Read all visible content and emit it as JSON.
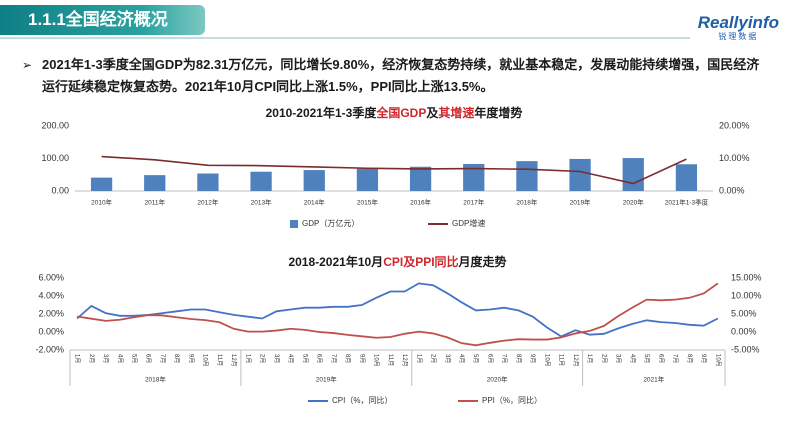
{
  "header": {
    "title": "1.1.1全国经济概况"
  },
  "logo": {
    "name": "Reallyinfo",
    "subtitle": "锐理数据"
  },
  "bullet": "2021年1-3季度全国GDP为82.31万亿元，同比增长9.80%，经济恢复态势持续，就业基本稳定，发展动能持续增强，国民经济运行延续稳定恢复态势。2021年10月CPI同比上涨1.5%，PPI同比上涨13.5%。",
  "chart_data": [
    {
      "type": "combo",
      "title_segments": [
        {
          "text": "2010-2021年1-3季度",
          "color": "#1a1a1a"
        },
        {
          "text": "全国GDP",
          "color": "#d0262a"
        },
        {
          "text": "及",
          "color": "#1a1a1a"
        },
        {
          "text": "其增速",
          "color": "#d0262a"
        },
        {
          "text": "年度增势",
          "color": "#1a1a1a"
        }
      ],
      "categories": [
        "2010年",
        "2011年",
        "2012年",
        "2013年",
        "2014年",
        "2015年",
        "2016年",
        "2017年",
        "2018年",
        "2019年",
        "2020年",
        "2021年1-3季度"
      ],
      "series": [
        {
          "name": "GDP（万亿元）",
          "type": "bar",
          "color": "#4f81bd",
          "values": [
            41.2,
            48.79,
            53.86,
            59.3,
            64.36,
            68.89,
            74.64,
            83.2,
            91.93,
            98.65,
            101.36,
            82.31
          ]
        },
        {
          "name": "GDP增速",
          "type": "line",
          "axis": "y2",
          "color": "#7b2c2c",
          "values": [
            10.6,
            9.6,
            7.9,
            7.8,
            7.4,
            7.0,
            6.8,
            6.9,
            6.7,
            6.0,
            2.3,
            9.8
          ]
        }
      ],
      "ylim": [
        0,
        200
      ],
      "yticks": [
        {
          "value": 0,
          "label": "0.00"
        },
        {
          "value": 100,
          "label": "100.00"
        },
        {
          "value": 200,
          "label": "200.00"
        }
      ],
      "y2lim": [
        0,
        20
      ],
      "y2ticks": [
        {
          "value": 0,
          "label": "0.00%"
        },
        {
          "value": 10,
          "label": "10.00%"
        },
        {
          "value": 20,
          "label": "20.00%"
        }
      ],
      "grid": false,
      "legend": "bottom"
    },
    {
      "type": "line",
      "title_segments": [
        {
          "text": "2018-2021年10月",
          "color": "#1a1a1a"
        },
        {
          "text": "CPI及PPI同比",
          "color": "#d0262a"
        },
        {
          "text": "月度走势",
          "color": "#1a1a1a"
        }
      ],
      "categories": [
        "1月",
        "2月",
        "3月",
        "4月",
        "5月",
        "6月",
        "7月",
        "8月",
        "9月",
        "10月",
        "11月",
        "12月",
        "1月",
        "2月",
        "3月",
        "4月",
        "5月",
        "6月",
        "7月",
        "8月",
        "9月",
        "10月",
        "11月",
        "12月",
        "1月",
        "2月",
        "3月",
        "4月",
        "5月",
        "6月",
        "7月",
        "8月",
        "9月",
        "10月",
        "11月",
        "12月",
        "1月",
        "2月",
        "3月",
        "4月",
        "5月",
        "6月",
        "7月",
        "8月",
        "9月",
        "10月"
      ],
      "x_groups": [
        "2018年",
        "2019年",
        "2020年",
        "2021年"
      ],
      "series": [
        {
          "name": "CPI（%，同比）",
          "type": "line",
          "color": "#4472c4",
          "values": [
            1.5,
            2.9,
            2.1,
            1.8,
            1.8,
            1.9,
            2.1,
            2.3,
            2.5,
            2.5,
            2.2,
            1.9,
            1.7,
            1.5,
            2.3,
            2.5,
            2.7,
            2.7,
            2.8,
            2.8,
            3.0,
            3.8,
            4.5,
            4.5,
            5.4,
            5.2,
            4.3,
            3.3,
            2.4,
            2.5,
            2.7,
            2.4,
            1.7,
            0.5,
            -0.5,
            0.2,
            -0.3,
            -0.2,
            0.4,
            0.9,
            1.3,
            1.1,
            1.0,
            0.8,
            0.7,
            1.5
          ]
        },
        {
          "name": "PPI（%，同比）",
          "type": "line",
          "axis": "y2",
          "color": "#c0504d",
          "values": [
            4.3,
            3.7,
            3.1,
            3.4,
            4.1,
            4.7,
            4.6,
            4.1,
            3.6,
            3.3,
            2.7,
            0.9,
            0.1,
            0.1,
            0.4,
            0.9,
            0.6,
            0.0,
            -0.3,
            -0.8,
            -1.2,
            -1.6,
            -1.4,
            -0.5,
            0.1,
            -0.4,
            -1.5,
            -3.1,
            -3.7,
            -3.0,
            -2.4,
            -2.0,
            -2.1,
            -2.1,
            -1.5,
            -0.4,
            0.3,
            1.7,
            4.4,
            6.8,
            9.0,
            8.8,
            9.0,
            9.5,
            10.7,
            13.5
          ]
        }
      ],
      "ylim": [
        -2,
        6
      ],
      "yticks": [
        {
          "value": -2,
          "label": "-2.00%"
        },
        {
          "value": 0,
          "label": "0.00%"
        },
        {
          "value": 2,
          "label": "2.00%"
        },
        {
          "value": 4,
          "label": "4.00%"
        },
        {
          "value": 6,
          "label": "6.00%"
        }
      ],
      "y2lim": [
        -5,
        15
      ],
      "y2ticks": [
        {
          "value": -5,
          "label": "-5.00%"
        },
        {
          "value": 0,
          "label": "0.00%"
        },
        {
          "value": 5,
          "label": "5.00%"
        },
        {
          "value": 10,
          "label": "10.00%"
        },
        {
          "value": 15,
          "label": "15.00%"
        }
      ],
      "grid": false,
      "legend": "bottom"
    }
  ]
}
